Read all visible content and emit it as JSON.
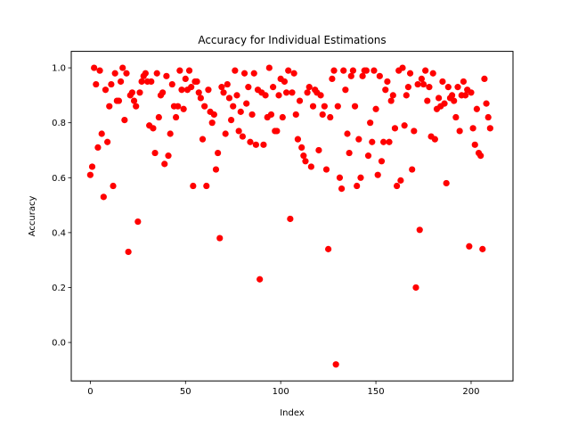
{
  "chart_data": {
    "type": "scatter",
    "title": "Accuracy for Individual Estimations",
    "xlabel": "Index",
    "ylabel": "Accuracy",
    "xlim": [
      -10,
      222
    ],
    "ylim": [
      -0.14,
      1.06
    ],
    "xticks": [
      0,
      50,
      100,
      150,
      200
    ],
    "xtick_labels": [
      "0",
      "50",
      "100",
      "150",
      "200"
    ],
    "yticks": [
      0.0,
      0.2,
      0.4,
      0.6,
      0.8,
      1.0
    ],
    "ytick_labels": [
      "0.0",
      "0.2",
      "0.4",
      "0.6",
      "0.8",
      "1.0"
    ],
    "grid": false,
    "marker_color": "#ff0000",
    "points": [
      [
        0,
        0.61
      ],
      [
        1,
        0.64
      ],
      [
        2,
        1.0
      ],
      [
        3,
        0.94
      ],
      [
        4,
        0.71
      ],
      [
        5,
        0.99
      ],
      [
        6,
        0.76
      ],
      [
        7,
        0.53
      ],
      [
        8,
        0.92
      ],
      [
        9,
        0.73
      ],
      [
        10,
        0.86
      ],
      [
        11,
        0.94
      ],
      [
        12,
        0.57
      ],
      [
        13,
        0.98
      ],
      [
        14,
        0.88
      ],
      [
        15,
        0.88
      ],
      [
        16,
        0.95
      ],
      [
        17,
        1.0
      ],
      [
        18,
        0.81
      ],
      [
        19,
        0.98
      ],
      [
        20,
        0.33
      ],
      [
        21,
        0.9
      ],
      [
        22,
        0.91
      ],
      [
        23,
        0.88
      ],
      [
        24,
        0.86
      ],
      [
        25,
        0.44
      ],
      [
        26,
        0.91
      ],
      [
        27,
        0.95
      ],
      [
        28,
        0.97
      ],
      [
        29,
        0.98
      ],
      [
        30,
        0.95
      ],
      [
        31,
        0.79
      ],
      [
        32,
        0.95
      ],
      [
        33,
        0.78
      ],
      [
        34,
        0.69
      ],
      [
        35,
        0.98
      ],
      [
        36,
        0.82
      ],
      [
        37,
        0.9
      ],
      [
        38,
        0.91
      ],
      [
        39,
        0.65
      ],
      [
        40,
        0.97
      ],
      [
        41,
        0.68
      ],
      [
        42,
        0.76
      ],
      [
        43,
        0.94
      ],
      [
        44,
        0.86
      ],
      [
        45,
        0.82
      ],
      [
        46,
        0.86
      ],
      [
        47,
        0.99
      ],
      [
        48,
        0.92
      ],
      [
        49,
        0.85
      ],
      [
        50,
        0.96
      ],
      [
        51,
        0.92
      ],
      [
        52,
        0.99
      ],
      [
        53,
        0.93
      ],
      [
        54,
        0.57
      ],
      [
        55,
        0.95
      ],
      [
        56,
        0.95
      ],
      [
        57,
        0.91
      ],
      [
        58,
        0.89
      ],
      [
        59,
        0.74
      ],
      [
        60,
        0.86
      ],
      [
        61,
        0.57
      ],
      [
        62,
        0.92
      ],
      [
        63,
        0.84
      ],
      [
        64,
        0.8
      ],
      [
        65,
        0.83
      ],
      [
        66,
        0.63
      ],
      [
        67,
        0.69
      ],
      [
        68,
        0.38
      ],
      [
        69,
        0.93
      ],
      [
        70,
        0.91
      ],
      [
        71,
        0.76
      ],
      [
        72,
        0.94
      ],
      [
        73,
        0.89
      ],
      [
        74,
        0.81
      ],
      [
        75,
        0.86
      ],
      [
        76,
        0.99
      ],
      [
        77,
        0.9
      ],
      [
        78,
        0.77
      ],
      [
        79,
        0.84
      ],
      [
        80,
        0.75
      ],
      [
        81,
        0.98
      ],
      [
        82,
        0.87
      ],
      [
        83,
        0.93
      ],
      [
        84,
        0.73
      ],
      [
        85,
        0.83
      ],
      [
        86,
        0.98
      ],
      [
        87,
        0.72
      ],
      [
        88,
        0.92
      ],
      [
        89,
        0.23
      ],
      [
        90,
        0.91
      ],
      [
        91,
        0.72
      ],
      [
        92,
        0.9
      ],
      [
        93,
        0.82
      ],
      [
        94,
        1.0
      ],
      [
        95,
        0.83
      ],
      [
        96,
        0.93
      ],
      [
        97,
        0.77
      ],
      [
        98,
        0.77
      ],
      [
        99,
        0.9
      ],
      [
        100,
        0.96
      ],
      [
        101,
        0.82
      ],
      [
        102,
        0.95
      ],
      [
        103,
        0.91
      ],
      [
        104,
        0.99
      ],
      [
        105,
        0.45
      ],
      [
        106,
        0.91
      ],
      [
        107,
        0.98
      ],
      [
        108,
        0.83
      ],
      [
        109,
        0.74
      ],
      [
        110,
        0.88
      ],
      [
        111,
        0.71
      ],
      [
        112,
        0.68
      ],
      [
        113,
        0.66
      ],
      [
        114,
        0.91
      ],
      [
        115,
        0.93
      ],
      [
        116,
        0.64
      ],
      [
        117,
        0.86
      ],
      [
        118,
        0.92
      ],
      [
        119,
        0.91
      ],
      [
        120,
        0.7
      ],
      [
        121,
        0.9
      ],
      [
        122,
        0.83
      ],
      [
        123,
        0.86
      ],
      [
        124,
        0.63
      ],
      [
        125,
        0.34
      ],
      [
        126,
        0.82
      ],
      [
        127,
        0.96
      ],
      [
        128,
        0.99
      ],
      [
        129,
        -0.08
      ],
      [
        130,
        0.86
      ],
      [
        131,
        0.6
      ],
      [
        132,
        0.56
      ],
      [
        133,
        0.99
      ],
      [
        134,
        0.92
      ],
      [
        135,
        0.76
      ],
      [
        136,
        0.69
      ],
      [
        137,
        0.97
      ],
      [
        138,
        0.99
      ],
      [
        139,
        0.86
      ],
      [
        140,
        0.57
      ],
      [
        141,
        0.74
      ],
      [
        142,
        0.6
      ],
      [
        143,
        0.97
      ],
      [
        144,
        0.99
      ],
      [
        145,
        0.99
      ],
      [
        146,
        0.68
      ],
      [
        147,
        0.8
      ],
      [
        148,
        0.73
      ],
      [
        149,
        0.99
      ],
      [
        150,
        0.85
      ],
      [
        151,
        0.61
      ],
      [
        152,
        0.97
      ],
      [
        153,
        0.66
      ],
      [
        154,
        0.73
      ],
      [
        155,
        0.92
      ],
      [
        156,
        0.95
      ],
      [
        157,
        0.73
      ],
      [
        158,
        0.88
      ],
      [
        159,
        0.9
      ],
      [
        160,
        0.78
      ],
      [
        161,
        0.57
      ],
      [
        162,
        0.99
      ],
      [
        163,
        0.59
      ],
      [
        164,
        1.0
      ],
      [
        165,
        0.79
      ],
      [
        166,
        0.9
      ],
      [
        167,
        0.93
      ],
      [
        168,
        0.98
      ],
      [
        169,
        0.63
      ],
      [
        170,
        0.77
      ],
      [
        171,
        0.2
      ],
      [
        172,
        0.94
      ],
      [
        173,
        0.41
      ],
      [
        174,
        0.96
      ],
      [
        175,
        0.94
      ],
      [
        176,
        0.99
      ],
      [
        177,
        0.88
      ],
      [
        178,
        0.93
      ],
      [
        179,
        0.75
      ],
      [
        180,
        0.98
      ],
      [
        181,
        0.74
      ],
      [
        182,
        0.85
      ],
      [
        183,
        0.89
      ],
      [
        184,
        0.86
      ],
      [
        185,
        0.95
      ],
      [
        186,
        0.87
      ],
      [
        187,
        0.58
      ],
      [
        188,
        0.93
      ],
      [
        189,
        0.89
      ],
      [
        190,
        0.9
      ],
      [
        191,
        0.88
      ],
      [
        192,
        0.82
      ],
      [
        193,
        0.93
      ],
      [
        194,
        0.77
      ],
      [
        195,
        0.9
      ],
      [
        196,
        0.95
      ],
      [
        197,
        0.9
      ],
      [
        198,
        0.92
      ],
      [
        199,
        0.35
      ],
      [
        200,
        0.91
      ],
      [
        201,
        0.78
      ],
      [
        202,
        0.72
      ],
      [
        203,
        0.85
      ],
      [
        204,
        0.69
      ],
      [
        205,
        0.68
      ],
      [
        206,
        0.34
      ],
      [
        207,
        0.96
      ],
      [
        208,
        0.87
      ],
      [
        209,
        0.82
      ],
      [
        210,
        0.78
      ]
    ]
  }
}
